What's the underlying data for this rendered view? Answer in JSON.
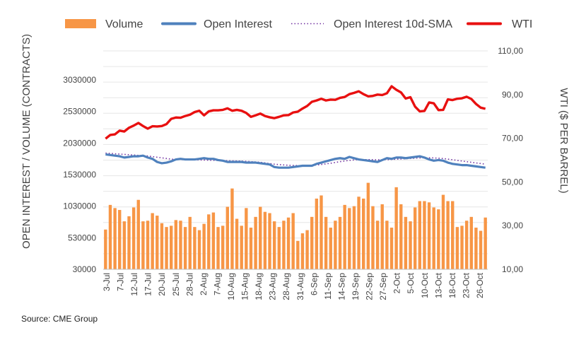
{
  "chart_data": {
    "type": "bar+line",
    "legend": {
      "placement": "top",
      "items": [
        {
          "name": "Volume",
          "kind": "bar",
          "color": "#F79646"
        },
        {
          "name": "Open Interest",
          "kind": "line",
          "color": "#4F81BD"
        },
        {
          "name": "Open Interest 10d-SMA",
          "kind": "dotted",
          "color": "#7030A0"
        },
        {
          "name": "WTI",
          "kind": "line",
          "color": "#E81010"
        }
      ]
    },
    "y_left": {
      "label": "OPEN INTEREST / VOLUME (CONTRACTS)",
      "min": 30000,
      "max": 3030000,
      "ticks": [
        "30000",
        "530000",
        "1030000",
        "1530000",
        "2030000",
        "2530000",
        "3030000"
      ]
    },
    "y_right": {
      "label": "WTI ($ PER BARREL)",
      "min": 10,
      "max": 110,
      "ticks": [
        "10,00",
        "30,00",
        "50,00",
        "70,00",
        "90,00",
        "110,00"
      ]
    },
    "x_ticks": [
      "3-Jul",
      "7-Jul",
      "12-Jul",
      "17-Jul",
      "20-Jul",
      "25-Jul",
      "28-Jul",
      "2-Aug",
      "7-Aug",
      "10-Aug",
      "15-Aug",
      "18-Aug",
      "23-Aug",
      "28-Aug",
      "31-Aug",
      "6-Sep",
      "11-Sep",
      "14-Sep",
      "19-Sep",
      "22-Sep",
      "27-Sep",
      "2-Oct",
      "5-Oct",
      "10-Oct",
      "13-Oct",
      "18-Oct",
      "23-Oct",
      "26-Oct"
    ],
    "series": [
      {
        "name": "Volume",
        "values": [
          660000,
          1050000,
          1000000,
          970000,
          790000,
          870000,
          1010000,
          1130000,
          790000,
          800000,
          920000,
          880000,
          760000,
          700000,
          720000,
          810000,
          800000,
          700000,
          860000,
          700000,
          650000,
          750000,
          900000,
          930000,
          700000,
          720000,
          1020000,
          1310000,
          830000,
          720000,
          1000000,
          690000,
          860000,
          1020000,
          940000,
          920000,
          790000,
          700000,
          800000,
          850000,
          920000,
          480000,
          600000,
          650000,
          860000,
          1150000,
          1200000,
          860000,
          690000,
          800000,
          860000,
          1050000,
          1000000,
          1030000,
          1180000,
          1150000,
          1400000,
          1030000,
          800000,
          1060000,
          800000,
          690000,
          1330000,
          1060000,
          860000,
          790000,
          1010000,
          1110000,
          1110000,
          1090000,
          1010000,
          980000,
          1210000,
          1110000,
          1110000,
          700000,
          720000,
          800000,
          860000,
          690000,
          640000,
          850000
        ]
      },
      {
        "name": "Open Interest",
        "values": [
          1850000,
          1840000,
          1830000,
          1820000,
          1800000,
          1810000,
          1820000,
          1820000,
          1830000,
          1800000,
          1780000,
          1730000,
          1710000,
          1720000,
          1740000,
          1770000,
          1780000,
          1770000,
          1770000,
          1770000,
          1780000,
          1790000,
          1780000,
          1780000,
          1760000,
          1750000,
          1730000,
          1730000,
          1730000,
          1730000,
          1720000,
          1720000,
          1720000,
          1710000,
          1700000,
          1690000,
          1650000,
          1640000,
          1640000,
          1640000,
          1650000,
          1660000,
          1670000,
          1670000,
          1670000,
          1700000,
          1720000,
          1740000,
          1760000,
          1780000,
          1790000,
          1780000,
          1810000,
          1790000,
          1770000,
          1760000,
          1750000,
          1740000,
          1730000,
          1760000,
          1790000,
          1780000,
          1800000,
          1800000,
          1790000,
          1800000,
          1810000,
          1820000,
          1800000,
          1770000,
          1750000,
          1760000,
          1750000,
          1720000,
          1700000,
          1690000,
          1680000,
          1680000,
          1670000,
          1660000,
          1650000,
          1640000
        ]
      },
      {
        "name": "Open Interest 10d-SMA",
        "values": [
          1870000,
          1865000,
          1860000,
          1855000,
          1850000,
          1845000,
          1840000,
          1835000,
          1830000,
          1825000,
          1815000,
          1805000,
          1795000,
          1785000,
          1775000,
          1770000,
          1768000,
          1766000,
          1765000,
          1764000,
          1762000,
          1760000,
          1758000,
          1756000,
          1754000,
          1752000,
          1750000,
          1748000,
          1746000,
          1744000,
          1740000,
          1735000,
          1730000,
          1725000,
          1715000,
          1705000,
          1695000,
          1688000,
          1683000,
          1678000,
          1675000,
          1673000,
          1672000,
          1673000,
          1676000,
          1682000,
          1690000,
          1700000,
          1710000,
          1722000,
          1735000,
          1745000,
          1755000,
          1762000,
          1766000,
          1768000,
          1768000,
          1766000,
          1764000,
          1764000,
          1766000,
          1770000,
          1774000,
          1778000,
          1782000,
          1786000,
          1790000,
          1794000,
          1796000,
          1796000,
          1794000,
          1790000,
          1784000,
          1775000,
          1765000,
          1755000,
          1745000,
          1735000,
          1725000,
          1715000,
          1705000,
          1695000
        ]
      },
      {
        "name": "WTI",
        "values": [
          69.8,
          71.5,
          71.8,
          73.5,
          73.1,
          74.8,
          75.8,
          77.0,
          75.6,
          74.4,
          75.5,
          75.4,
          75.6,
          76.5,
          78.9,
          79.5,
          79.4,
          80.2,
          80.8,
          82.0,
          82.6,
          80.5,
          82.3,
          82.8,
          82.8,
          83.0,
          83.7,
          82.6,
          83.0,
          82.6,
          81.6,
          79.8,
          80.5,
          81.3,
          80.2,
          79.6,
          79.2,
          79.8,
          80.5,
          80.6,
          81.8,
          82.2,
          83.6,
          84.8,
          86.7,
          87.3,
          88.1,
          87.3,
          87.7,
          87.6,
          88.5,
          88.9,
          90.2,
          90.8,
          91.5,
          90.2,
          89.2,
          89.4,
          90.0,
          89.8,
          90.6,
          93.8,
          92.2,
          91.0,
          88.2,
          88.8,
          84.5,
          82.3,
          82.5,
          86.4,
          86.0,
          82.9,
          83.0,
          87.8,
          87.5,
          88.1,
          88.3,
          89.0,
          88.0,
          85.7,
          84.0,
          83.5
        ]
      }
    ]
  },
  "source": "Source: CME Group"
}
